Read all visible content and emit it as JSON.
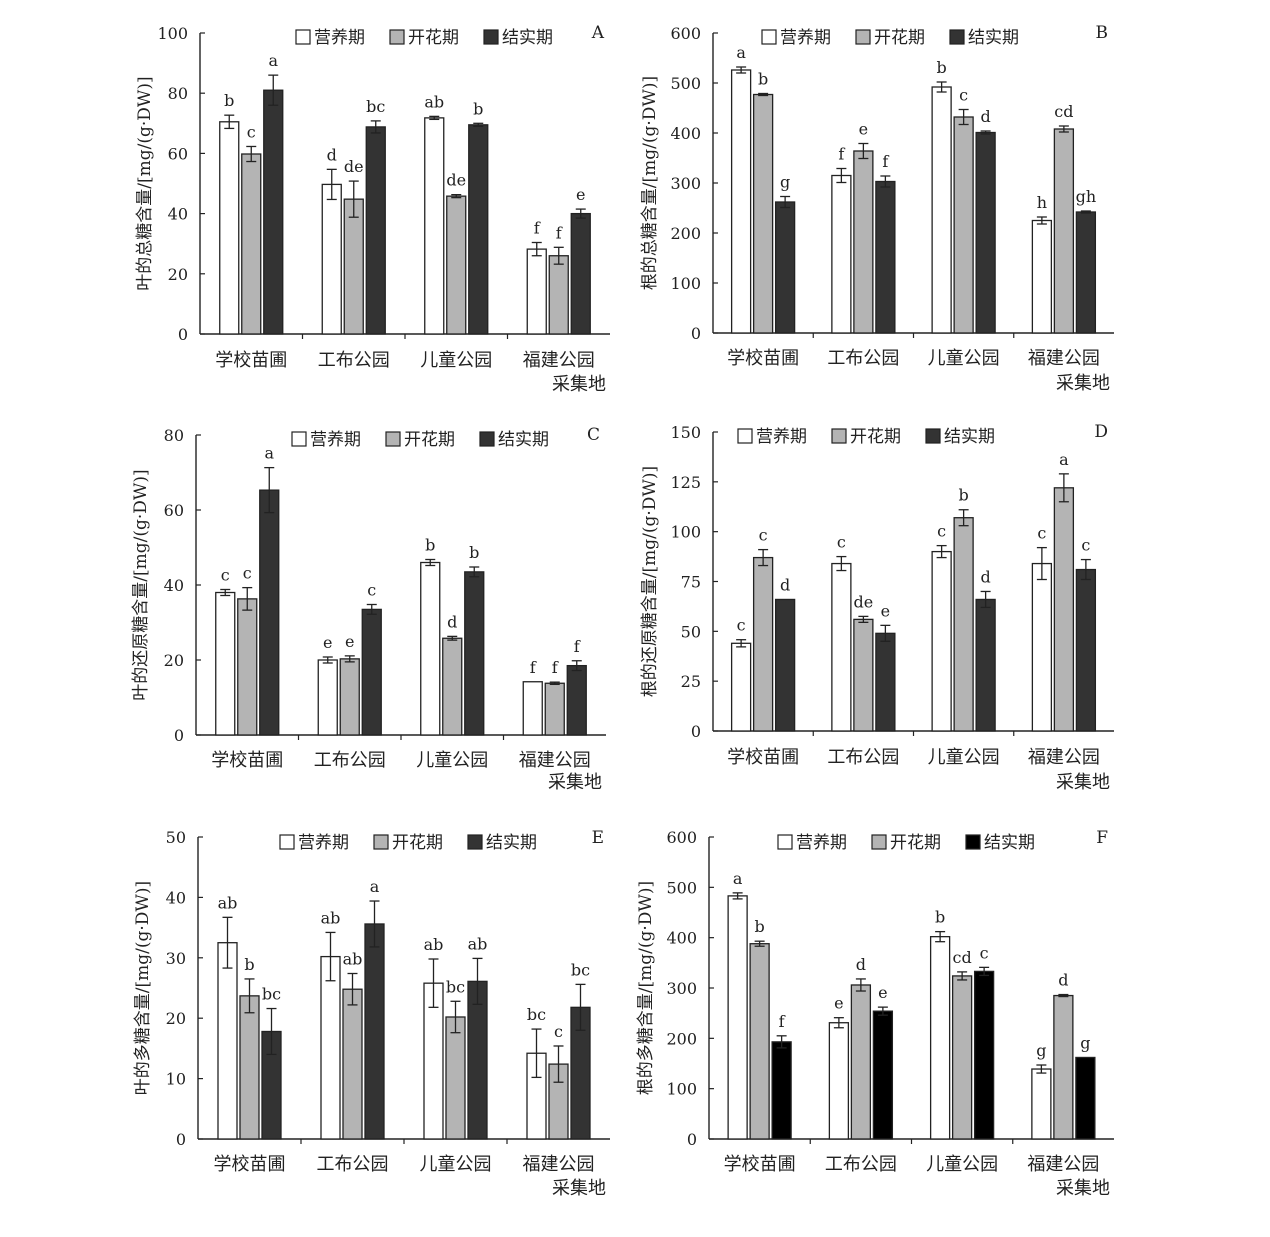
{
  "colors": {
    "white": "#ffffff",
    "gray": "#b4b4b4",
    "dark": "#333333",
    "black": "#000000",
    "axis": "#222222"
  },
  "categories": [
    "学校苗圃",
    "工布公园",
    "儿童公园",
    "福建公园"
  ],
  "xlabel": "采集地",
  "legend": [
    "营养期",
    "开花期",
    "结实期"
  ],
  "chart_data": [
    {
      "type": "bar",
      "panel": "A",
      "ylabel": "叶的总糖含量/[mg/(g·DW)]",
      "ylim": [
        0,
        100
      ],
      "yticks": [
        "0",
        "20",
        "40",
        "60",
        "80",
        "100"
      ],
      "series": [
        {
          "name": "营养期",
          "color": "#ffffff",
          "values": [
            70.5,
            49.7,
            71.8,
            28.2
          ],
          "errors": [
            2.2,
            5.0,
            0.5,
            2.2
          ],
          "letters": [
            "b",
            "d",
            "ab",
            "f"
          ]
        },
        {
          "name": "开花期",
          "color": "#b4b4b4",
          "values": [
            59.8,
            44.8,
            45.8,
            26.0
          ],
          "errors": [
            2.5,
            6.0,
            0.5,
            2.8
          ],
          "letters": [
            "c",
            "de",
            "de",
            "f"
          ]
        },
        {
          "name": "结实期",
          "color": "#333333",
          "values": [
            81.0,
            68.8,
            69.5,
            40.0
          ],
          "errors": [
            5.0,
            2.0,
            0.5,
            1.5
          ],
          "letters": [
            "a",
            "bc",
            "b",
            "e"
          ]
        }
      ]
    },
    {
      "type": "bar",
      "panel": "B",
      "ylabel": "根的总糖含量/[mg/(g·DW)]",
      "ylim": [
        0,
        600
      ],
      "yticks": [
        "0",
        "100",
        "200",
        "300",
        "400",
        "500",
        "600"
      ],
      "series": [
        {
          "name": "营养期",
          "color": "#ffffff",
          "values": [
            526,
            315,
            492,
            225
          ],
          "errors": [
            6,
            14,
            10,
            7
          ],
          "letters": [
            "a",
            "f",
            "b",
            "h"
          ]
        },
        {
          "name": "开花期",
          "color": "#b4b4b4",
          "values": [
            477,
            364,
            432,
            408
          ],
          "errors": [
            2,
            15,
            15,
            6
          ],
          "letters": [
            "b",
            "e",
            "c",
            "cd"
          ]
        },
        {
          "name": "结实期",
          "color": "#333333",
          "values": [
            262,
            303,
            401,
            242
          ],
          "errors": [
            11,
            11,
            3,
            2
          ],
          "letters": [
            "g",
            "f",
            "d",
            "gh"
          ]
        }
      ]
    },
    {
      "type": "bar",
      "panel": "C",
      "ylabel": "叶的还原糖含量/[mg/(g·DW)]",
      "ylim": [
        0,
        80
      ],
      "yticks": [
        "0",
        "20",
        "40",
        "60",
        "80"
      ],
      "series": [
        {
          "name": "营养期",
          "color": "#ffffff",
          "values": [
            38.0,
            20.0,
            46.0,
            14.2
          ],
          "errors": [
            0.8,
            0.8,
            0.8,
            0
          ],
          "letters": [
            "c",
            "e",
            "b",
            "f"
          ]
        },
        {
          "name": "开花期",
          "color": "#b4b4b4",
          "values": [
            36.3,
            20.3,
            25.8,
            13.8
          ],
          "errors": [
            3.0,
            0.8,
            0.5,
            0.3
          ],
          "letters": [
            "c",
            "e",
            "d",
            "f"
          ]
        },
        {
          "name": "结实期",
          "color": "#333333",
          "values": [
            65.3,
            33.5,
            43.5,
            18.5
          ],
          "errors": [
            6.0,
            1.3,
            1.3,
            1.3
          ],
          "letters": [
            "a",
            "c",
            "b",
            "f"
          ]
        }
      ]
    },
    {
      "type": "bar",
      "panel": "D",
      "ylabel": "根的还原糖含量/[mg/(g·DW)]",
      "ylim": [
        0,
        150
      ],
      "yticks": [
        "0",
        "25",
        "50",
        "75",
        "100",
        "125",
        "150"
      ],
      "series": [
        {
          "name": "营养期",
          "color": "#ffffff",
          "values": [
            44,
            84,
            90,
            84
          ],
          "errors": [
            1.8,
            3.5,
            3.0,
            8.0
          ],
          "letters": [
            "c",
            "c",
            "c",
            "c"
          ]
        },
        {
          "name": "开花期",
          "color": "#b4b4b4",
          "values": [
            87,
            56,
            107,
            122
          ],
          "errors": [
            4.0,
            1.5,
            4.0,
            7.0
          ],
          "letters": [
            "c",
            "de",
            "b",
            "a"
          ]
        },
        {
          "name": "结实期",
          "color": "#333333",
          "values": [
            66,
            49,
            66,
            81
          ],
          "errors": [
            0,
            4.0,
            4.0,
            5.0
          ],
          "letters": [
            "d",
            "e",
            "d",
            "c"
          ]
        }
      ]
    },
    {
      "type": "bar",
      "panel": "E",
      "ylabel": "叶的多糖含量/[mg/(g·DW)]",
      "ylim": [
        0,
        50
      ],
      "yticks": [
        "0",
        "10",
        "20",
        "30",
        "40",
        "50"
      ],
      "series": [
        {
          "name": "营养期",
          "color": "#ffffff",
          "values": [
            32.5,
            30.2,
            25.8,
            14.2
          ],
          "errors": [
            4.2,
            4.0,
            4.0,
            4.0
          ],
          "letters": [
            "ab",
            "ab",
            "ab",
            "bc"
          ]
        },
        {
          "name": "开花期",
          "color": "#b4b4b4",
          "values": [
            23.7,
            24.8,
            20.2,
            12.4
          ],
          "errors": [
            2.8,
            2.6,
            2.6,
            3.0
          ],
          "letters": [
            "b",
            "ab",
            "bc",
            "c"
          ]
        },
        {
          "name": "结实期",
          "color": "#333333",
          "values": [
            17.8,
            35.6,
            26.1,
            21.8
          ],
          "errors": [
            3.8,
            3.8,
            3.8,
            3.8
          ],
          "letters": [
            "bc",
            "a",
            "ab",
            "bc"
          ]
        }
      ]
    },
    {
      "type": "bar",
      "panel": "F",
      "ylabel": "根的多糖含量/[mg/(g·DW)]",
      "ylim": [
        0,
        600
      ],
      "yticks": [
        "0",
        "100",
        "200",
        "300",
        "400",
        "500",
        "600"
      ],
      "series": [
        {
          "name": "营养期",
          "color": "#ffffff",
          "values": [
            483,
            231,
            402,
            139
          ],
          "errors": [
            6,
            10,
            10,
            8
          ],
          "letters": [
            "a",
            "e",
            "b",
            "g"
          ]
        },
        {
          "name": "开花期",
          "color": "#b4b4b4",
          "values": [
            388,
            306,
            324,
            285
          ],
          "errors": [
            5,
            12,
            8,
            2
          ],
          "letters": [
            "b",
            "d",
            "cd",
            "d"
          ]
        },
        {
          "name": "结实期",
          "color": "#000000",
          "values": [
            193,
            254,
            333,
            162
          ],
          "errors": [
            12,
            8,
            8,
            0
          ],
          "letters": [
            "f",
            "e",
            "c",
            "g"
          ]
        }
      ]
    }
  ]
}
